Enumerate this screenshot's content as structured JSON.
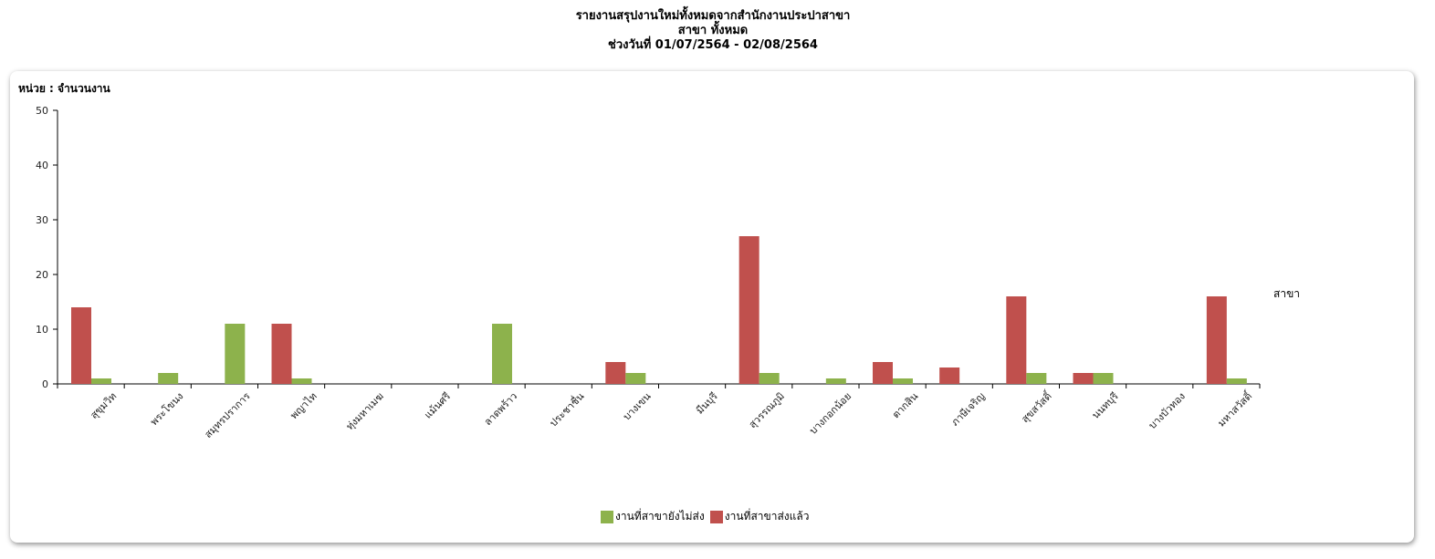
{
  "header": {
    "title_line1": "รายงานสรุปงานใหม่ทั้งหมดจากสำนักงานประปาสาขา",
    "title_line2": "สาขา ทั้งหมด",
    "title_line3": "ช่วงวันที่ 01/07/2564 - 02/08/2564"
  },
  "chart_data": {
    "type": "bar",
    "unit_label": "หน่วย : จำนวนงาน",
    "xlabel": "สาขา",
    "ylim": [
      0,
      50
    ],
    "yticks": [
      0,
      10,
      20,
      30,
      40,
      50
    ],
    "grid": false,
    "legend_position": "bottom-center",
    "categories": [
      "สุขุมวิท",
      "พระโขนง",
      "สมุทรปราการ",
      "พญาไท",
      "ทุ่งมหาเมฆ",
      "แม้นศรี",
      "ลาดพร้าว",
      "ประชาชื่น",
      "บางเขน",
      "มีนบุรี",
      "สุวรรณภูมิ",
      "บางกอกน้อย",
      "ตากสิน",
      "ภาษีเจริญ",
      "สุขสวัสดิ์",
      "นนทบุรี",
      "บางบัวทอง",
      "มหาสวัสดิ์"
    ],
    "series": [
      {
        "name": "งานที่สาขาส่งแล้ว",
        "color": "#c0504d",
        "values": [
          14,
          0,
          0,
          11,
          0,
          0,
          0,
          0,
          4,
          0,
          27,
          0,
          4,
          3,
          16,
          2,
          0,
          16
        ]
      },
      {
        "name": "งานที่สาขายังไม่ส่ง",
        "color": "#8db24c",
        "values": [
          1,
          2,
          11,
          1,
          0,
          0,
          11,
          0,
          2,
          0,
          2,
          1,
          1,
          0,
          2,
          2,
          0,
          1
        ]
      }
    ],
    "legend_order": [
      1,
      0
    ]
  }
}
